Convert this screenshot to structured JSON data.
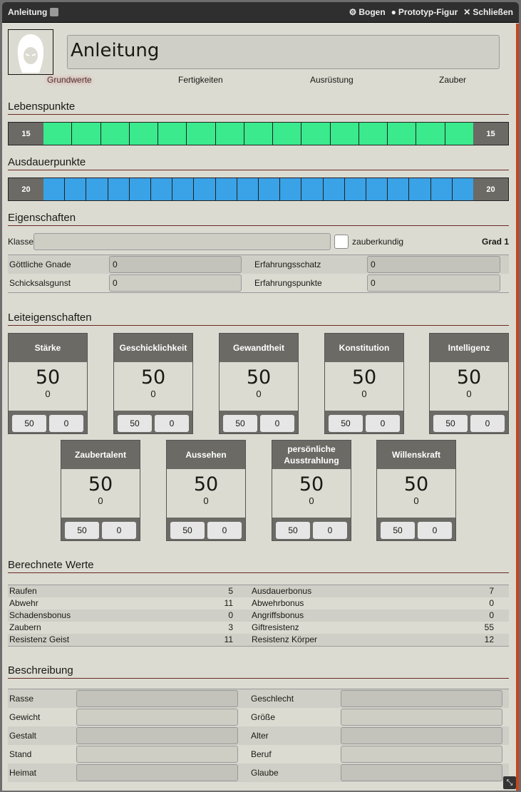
{
  "window": {
    "title": "Anleitung",
    "controls": [
      {
        "icon": "gear-icon",
        "label": "Bogen"
      },
      {
        "icon": "user-circle-icon",
        "label": "Prototyp-Figur"
      },
      {
        "icon": "close-icon",
        "label": "Schließen"
      }
    ]
  },
  "character": {
    "name": "Anleitung"
  },
  "tabs": [
    "Grundwerte",
    "Fertigkeiten",
    "Ausrüstung",
    "Zauber"
  ],
  "active_tab": "Grundwerte",
  "lebenspunkte": {
    "title": "Lebenspunkte",
    "current": "15",
    "max": "15",
    "color": "#3aea8c",
    "segments": 15
  },
  "ausdauerpunkte": {
    "title": "Ausdauerpunkte",
    "current": "20",
    "max": "20",
    "color": "#3aa2e6",
    "segments": 20
  },
  "eigenschaften": {
    "title": "Eigenschaften",
    "klasse_label": "Klasse",
    "klasse_value": "",
    "zauberkundig_label": "zauberkundig",
    "zauberkundig_checked": false,
    "grad": "Grad 1",
    "fields": [
      [
        "Göttliche Gnade",
        "0",
        "Erfahrungsschatz",
        "0"
      ],
      [
        "Schicksalsgunst",
        "0",
        "Erfahrungspunkte",
        "0"
      ]
    ]
  },
  "leiteigenschaften": {
    "title": "Leiteigenschaften",
    "stats": [
      {
        "name": "Stärke",
        "value": "50",
        "mod": "0",
        "base": "50",
        "bonus": "0"
      },
      {
        "name": "Geschicklichkeit",
        "value": "50",
        "mod": "0",
        "base": "50",
        "bonus": "0"
      },
      {
        "name": "Gewandtheit",
        "value": "50",
        "mod": "0",
        "base": "50",
        "bonus": "0"
      },
      {
        "name": "Konstitution",
        "value": "50",
        "mod": "0",
        "base": "50",
        "bonus": "0"
      },
      {
        "name": "Intelligenz",
        "value": "50",
        "mod": "0",
        "base": "50",
        "bonus": "0"
      },
      {
        "name": "Zaubertalent",
        "value": "50",
        "mod": "0",
        "base": "50",
        "bonus": "0"
      },
      {
        "name": "Aussehen",
        "value": "50",
        "mod": "0",
        "base": "50",
        "bonus": "0"
      },
      {
        "name": "persönliche Ausstrahlung",
        "value": "50",
        "mod": "0",
        "base": "50",
        "bonus": "0"
      },
      {
        "name": "Willenskraft",
        "value": "50",
        "mod": "0",
        "base": "50",
        "bonus": "0"
      }
    ]
  },
  "berechnete": {
    "title": "Berechnete Werte",
    "rows": [
      [
        "Raufen",
        "5",
        "Ausdauerbonus",
        "7"
      ],
      [
        "Abwehr",
        "11",
        "Abwehrbonus",
        "0"
      ],
      [
        "Schadensbonus",
        "0",
        "Angriffsbonus",
        "0"
      ],
      [
        "Zaubern",
        "3",
        "Giftresistenz",
        "55"
      ],
      [
        "Resistenz Geist",
        "11",
        "Resistenz Körper",
        "12"
      ]
    ]
  },
  "beschreibung": {
    "title": "Beschreibung",
    "rows": [
      [
        "Rasse",
        "",
        "Geschlecht",
        ""
      ],
      [
        "Gewicht",
        "",
        "Größe",
        ""
      ],
      [
        "Gestalt",
        "",
        "Alter",
        ""
      ],
      [
        "Stand",
        "",
        "Beruf",
        ""
      ],
      [
        "Heimat",
        "",
        "Glaube",
        ""
      ]
    ]
  }
}
